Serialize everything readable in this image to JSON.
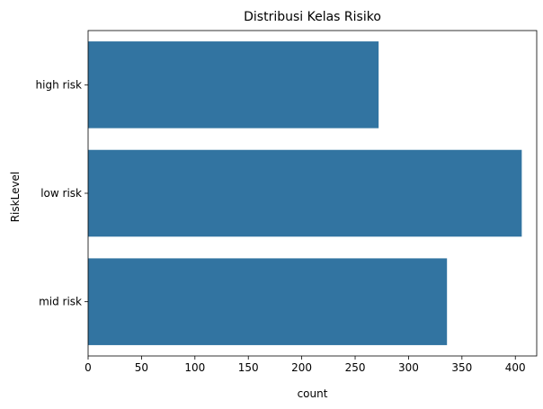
{
  "chart_data": {
    "type": "bar",
    "orientation": "horizontal",
    "title": "Distribusi Kelas Risiko",
    "xlabel": "count",
    "ylabel": "RiskLevel",
    "categories": [
      "high risk",
      "low risk",
      "mid risk"
    ],
    "values": [
      272,
      406,
      336
    ],
    "xlim": [
      0,
      420
    ],
    "xticks": [
      0,
      50,
      100,
      150,
      200,
      250,
      300,
      350,
      400
    ],
    "grid": false,
    "legend": "none",
    "bar_color": "#3274a1"
  }
}
